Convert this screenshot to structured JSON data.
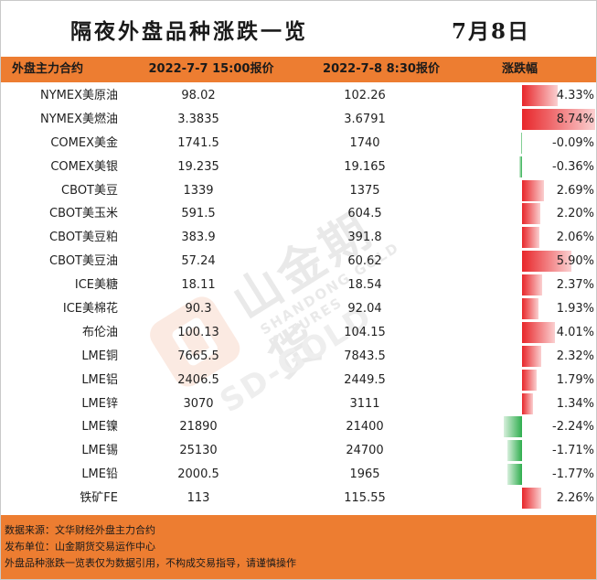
{
  "title": "隔夜外盘品种涨跌一览",
  "date": "7月8日",
  "headers": {
    "name": "外盘主力合约",
    "price1": "2022-7-7 15:00报价",
    "price2": "2022-7-8 8:30报价",
    "change": "涨跌幅"
  },
  "rows": [
    {
      "name": "NYMEX美原油",
      "p1": "98.02",
      "p2": "102.26",
      "pct": "4.33%",
      "change": 4.33
    },
    {
      "name": "NYMEX美燃油",
      "p1": "3.3835",
      "p2": "3.6791",
      "pct": "8.74%",
      "change": 8.74
    },
    {
      "name": "COMEX美金",
      "p1": "1741.5",
      "p2": "1740",
      "pct": "-0.09%",
      "change": -0.09
    },
    {
      "name": "COMEX美银",
      "p1": "19.235",
      "p2": "19.165",
      "pct": "-0.36%",
      "change": -0.36
    },
    {
      "name": "CBOT美豆",
      "p1": "1339",
      "p2": "1375",
      "pct": "2.69%",
      "change": 2.69
    },
    {
      "name": "CBOT美玉米",
      "p1": "591.5",
      "p2": "604.5",
      "pct": "2.20%",
      "change": 2.2
    },
    {
      "name": "CBOT美豆粕",
      "p1": "383.9",
      "p2": "391.8",
      "pct": "2.06%",
      "change": 2.06
    },
    {
      "name": "CBOT美豆油",
      "p1": "57.24",
      "p2": "60.62",
      "pct": "5.90%",
      "change": 5.9
    },
    {
      "name": "ICE美糖",
      "p1": "18.11",
      "p2": "18.54",
      "pct": "2.37%",
      "change": 2.37
    },
    {
      "name": "ICE美棉花",
      "p1": "90.3",
      "p2": "92.04",
      "pct": "1.93%",
      "change": 1.93
    },
    {
      "name": "布伦油",
      "p1": "100.13",
      "p2": "104.15",
      "pct": "4.01%",
      "change": 4.01
    },
    {
      "name": "LME铜",
      "p1": "7665.5",
      "p2": "7843.5",
      "pct": "2.32%",
      "change": 2.32
    },
    {
      "name": "LME铝",
      "p1": "2406.5",
      "p2": "2449.5",
      "pct": "1.79%",
      "change": 1.79
    },
    {
      "name": "LME锌",
      "p1": "3070",
      "p2": "3111",
      "pct": "1.34%",
      "change": 1.34
    },
    {
      "name": "LME镍",
      "p1": "21890",
      "p2": "21400",
      "pct": "-2.24%",
      "change": -2.24
    },
    {
      "name": "LME锡",
      "p1": "25130",
      "p2": "24700",
      "pct": "-1.71%",
      "change": -1.71
    },
    {
      "name": "LME铅",
      "p1": "2000.5",
      "p2": "1965",
      "pct": "-1.77%",
      "change": -1.77
    },
    {
      "name": "铁矿FE",
      "p1": "113",
      "p2": "115.55",
      "pct": "2.26%",
      "change": 2.26
    }
  ],
  "footer": [
    "数据来源：文华财经外盘主力合约",
    "发布单位：山金期货交易运作中心",
    "外盘品种涨跌一览表仅为数据引用，不构成交易指导，请谨慎操作"
  ],
  "watermark": {
    "cn": "山金期货",
    "en": "SHANDONG GOLD FUTURES",
    "brand": "SD-GOLD"
  },
  "colors": {
    "header_bg": "#ed7d31",
    "footer_bg": "#ed7d31",
    "up": "#e8262a",
    "down": "#2fae4e"
  }
}
